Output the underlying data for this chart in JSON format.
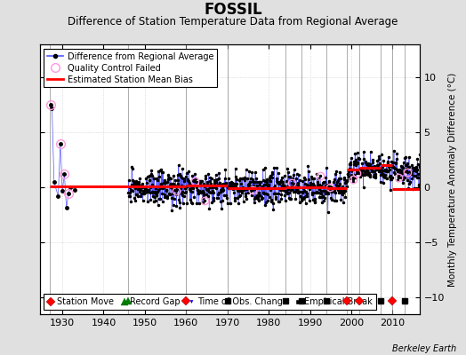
{
  "title": "FOSSIL",
  "subtitle": "Difference of Station Temperature Data from Regional Average",
  "ylabel": "Monthly Temperature Anomaly Difference (°C)",
  "xlabel_years": [
    1930,
    1940,
    1950,
    1960,
    1970,
    1980,
    1990,
    2000,
    2010
  ],
  "xlim": [
    1924.5,
    2016.5
  ],
  "ylim": [
    -11.5,
    13.0
  ],
  "yticks": [
    -10,
    -5,
    0,
    5,
    10
  ],
  "bg_color": "#e0e0e0",
  "plot_bg_color": "#ffffff",
  "grid_color": "#c8c8c8",
  "vertical_lines": [
    1927,
    1946,
    1960,
    1970,
    1984,
    1988,
    1994,
    1999,
    2002,
    2007,
    2010,
    2013
  ],
  "vline_color": "#888888",
  "station_moves": [
    1960,
    1999,
    2002,
    2010
  ],
  "record_gaps": [
    1946
  ],
  "obs_changes": [],
  "empirical_breaks": [
    1970,
    1984,
    1988,
    1994,
    2007,
    2013
  ],
  "bias_segments": [
    {
      "x_start": 1927,
      "x_end": 1960,
      "bias": 0.1
    },
    {
      "x_start": 1960,
      "x_end": 1970,
      "bias": 0.15
    },
    {
      "x_start": 1970,
      "x_end": 1984,
      "bias": -0.05
    },
    {
      "x_start": 1984,
      "x_end": 1988,
      "bias": 0.05
    },
    {
      "x_start": 1988,
      "x_end": 1994,
      "bias": 0.05
    },
    {
      "x_start": 1994,
      "x_end": 1999,
      "bias": -0.05
    },
    {
      "x_start": 1999,
      "x_end": 2002,
      "bias": 1.6
    },
    {
      "x_start": 2002,
      "x_end": 2007,
      "bias": 1.8
    },
    {
      "x_start": 2007,
      "x_end": 2010,
      "bias": 2.0
    },
    {
      "x_start": 2010,
      "x_end": 2013,
      "bias": -0.1
    },
    {
      "x_start": 2013,
      "x_end": 2016.5,
      "bias": -0.1
    }
  ],
  "line_color": "#5555ff",
  "dot_color": "#000000",
  "bias_color": "#ff0000",
  "qc_fail_color": "#ff99dd",
  "marker_y": -10.3,
  "berkeley_earth_text": "Berkeley Earth",
  "title_fontsize": 12,
  "subtitle_fontsize": 8.5
}
